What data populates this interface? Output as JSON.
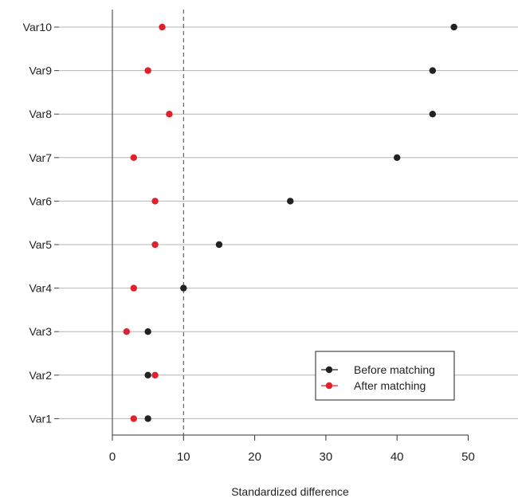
{
  "chart_data": {
    "type": "scatter",
    "title": "",
    "xlabel": "Standardized difference",
    "ylabel": "",
    "xlim": [
      -7,
      57
    ],
    "xticks": [
      0,
      10,
      20,
      30,
      40,
      50
    ],
    "categories": [
      "Var1",
      "Var2",
      "Var3",
      "Var4",
      "Var5",
      "Var6",
      "Var7",
      "Var8",
      "Var9",
      "Var10"
    ],
    "series": [
      {
        "name": "Before matching",
        "color": "#222222",
        "values": [
          5,
          5,
          5,
          10,
          15,
          25,
          40,
          45,
          45,
          48
        ]
      },
      {
        "name": "After matching",
        "color": "#e0202a",
        "values": [
          3,
          6,
          2,
          3,
          6,
          6,
          3,
          8,
          5,
          7
        ]
      }
    ],
    "reference_line": {
      "x": 10,
      "style": "dashed"
    },
    "grid": {
      "horizontal": true,
      "vertical": false
    },
    "legend": {
      "position": "bottom-right"
    }
  }
}
